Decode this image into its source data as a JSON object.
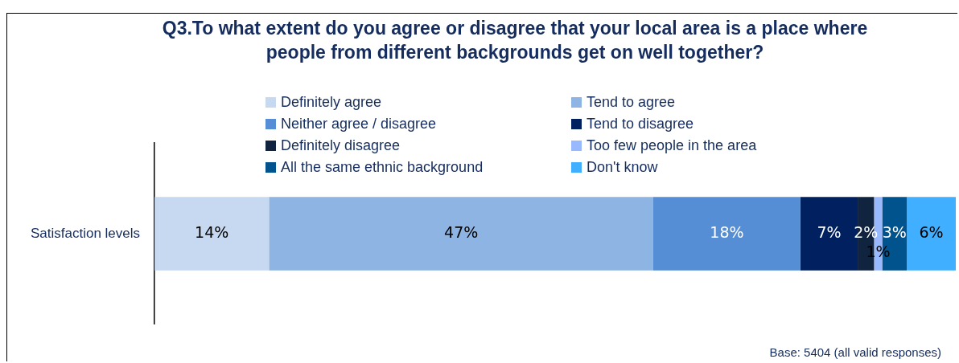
{
  "chart_data": {
    "type": "bar",
    "orientation": "horizontal",
    "stacked": true,
    "title": "Q3.To what extent do you agree or disagree that your local area is a place where people from different backgrounds get on well together?",
    "categories": [
      "Satisfaction levels"
    ],
    "series": [
      {
        "name": "Definitely agree",
        "color": "#c6d9f1",
        "values": [
          14
        ],
        "value_labels": [
          "14%"
        ]
      },
      {
        "name": "Tend to agree",
        "color": "#8eb4e3",
        "values": [
          47
        ],
        "value_labels": [
          "47%"
        ]
      },
      {
        "name": "Neither agree / disagree",
        "color": "#558ed5",
        "values": [
          18
        ],
        "value_labels": [
          "18%"
        ]
      },
      {
        "name": "Tend to disagree",
        "color": "#002060",
        "values": [
          7
        ],
        "value_labels": [
          "7%"
        ]
      },
      {
        "name": "Definitely disagree",
        "color": "#10243f",
        "values": [
          2
        ],
        "value_labels": [
          "2%"
        ]
      },
      {
        "name": "Too few people in the area",
        "color": "#99b9ff",
        "values": [
          1
        ],
        "value_labels": [
          "1%"
        ]
      },
      {
        "name": "All the same ethnic background",
        "color": "#00538c",
        "values": [
          3
        ],
        "value_labels": [
          "3%"
        ]
      },
      {
        "name": "Don't know",
        "color": "#40afff",
        "values": [
          6
        ],
        "value_labels": [
          "6%"
        ]
      }
    ],
    "legend": "top",
    "annotations": [
      "Base: 5404 (all valid responses)"
    ]
  }
}
